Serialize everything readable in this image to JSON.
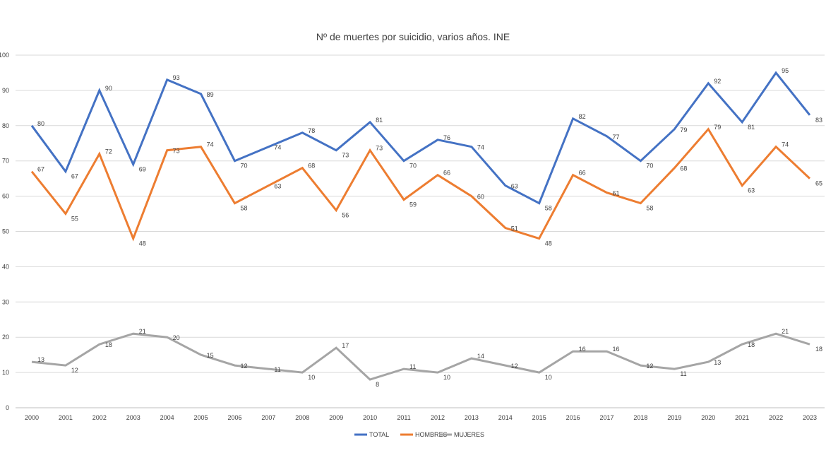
{
  "chart_data": {
    "type": "line",
    "title": "Nº de muertes por suicidio, varios años. INE",
    "xlabel": "",
    "ylabel": "",
    "ylim": [
      0,
      100
    ],
    "yticks": [
      "0",
      "10",
      "20",
      "30",
      "40",
      "50",
      "60",
      "70",
      "80",
      "90",
      "100"
    ],
    "categories": [
      "2000",
      "2001",
      "2002",
      "2003",
      "2004",
      "2005",
      "2006",
      "2007",
      "2008",
      "2009",
      "2010",
      "2011",
      "2012",
      "2013",
      "2014",
      "2015",
      "2016",
      "2017",
      "2018",
      "2019",
      "2020",
      "2021",
      "2022",
      "2023"
    ],
    "grid": true,
    "legend_position": "bottom",
    "series": [
      {
        "name": "TOTAL",
        "color": "#4472c4",
        "values": [
          80,
          67,
          90,
          69,
          93,
          89,
          70,
          74,
          78,
          73,
          81,
          70,
          76,
          74,
          63,
          58,
          82,
          77,
          70,
          79,
          92,
          81,
          95,
          83
        ]
      },
      {
        "name": "HOMBRES",
        "color": "#ed7d31",
        "values": [
          67,
          55,
          72,
          48,
          73,
          74,
          58,
          63,
          68,
          56,
          73,
          59,
          66,
          60,
          51,
          48,
          66,
          61,
          58,
          68,
          79,
          63,
          74,
          65
        ]
      },
      {
        "name": "MUJERES",
        "color": "#a5a5a5",
        "values": [
          13,
          12,
          18,
          21,
          20,
          15,
          12,
          11,
          10,
          17,
          8,
          11,
          10,
          14,
          12,
          10,
          16,
          16,
          12,
          11,
          13,
          18,
          21,
          18
        ]
      }
    ]
  }
}
